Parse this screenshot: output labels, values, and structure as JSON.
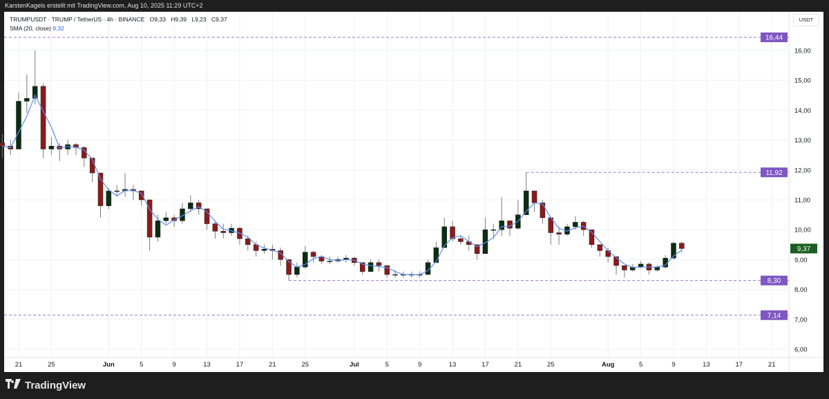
{
  "header": {
    "attribution": "KarstenKagels erstellt mit TradingView.com, Aug 10, 2025 11:29 UTC+2"
  },
  "legend": {
    "symbol": "TRUMPUSDT · TRUMP / TetherUS · 4h · BINANCE",
    "open": "O9,33",
    "high": "H9,39",
    "low": "L9,23",
    "close": "C9,37",
    "sma_label": "SMA (20, close)",
    "sma_value": "9,32"
  },
  "price_axis": {
    "currency": "USDT"
  },
  "branding": {
    "name": "TradingView",
    "logo": "TV"
  },
  "colors": {
    "up": "#0b2d12",
    "down": "#8b1a1a",
    "wick": "#7a7a7a",
    "sma": "#5b8def",
    "level": "#7e57c2",
    "last_price": "#1b5e20"
  },
  "chart_data": {
    "type": "candlestick",
    "ylim": [
      5.7,
      16.9
    ],
    "y_ticks": [
      "6,00",
      "7,00",
      "8,00",
      "9,00",
      "10,00",
      "11,00",
      "12,00",
      "13,00",
      "14,00",
      "15,00",
      "16,00"
    ],
    "y_tick_values": [
      6,
      7,
      8,
      9,
      10,
      11,
      12,
      13,
      14,
      15,
      16
    ],
    "x_ticks": [
      {
        "date": "2025-05-21",
        "label": "21"
      },
      {
        "date": "2025-05-25",
        "label": "25"
      },
      {
        "date": "2025-06-01",
        "label": "Jun"
      },
      {
        "date": "2025-06-05",
        "label": "5"
      },
      {
        "date": "2025-06-09",
        "label": "9"
      },
      {
        "date": "2025-06-13",
        "label": "13"
      },
      {
        "date": "2025-06-17",
        "label": "17"
      },
      {
        "date": "2025-06-21",
        "label": "21"
      },
      {
        "date": "2025-06-25",
        "label": "25"
      },
      {
        "date": "2025-07-01",
        "label": "Jul"
      },
      {
        "date": "2025-07-05",
        "label": "5"
      },
      {
        "date": "2025-07-09",
        "label": "9"
      },
      {
        "date": "2025-07-13",
        "label": "13"
      },
      {
        "date": "2025-07-17",
        "label": "17"
      },
      {
        "date": "2025-07-21",
        "label": "21"
      },
      {
        "date": "2025-07-25",
        "label": "25"
      },
      {
        "date": "2025-08-01",
        "label": "Aug"
      },
      {
        "date": "2025-08-05",
        "label": "5"
      },
      {
        "date": "2025-08-09",
        "label": "9"
      },
      {
        "date": "2025-08-13",
        "label": "13"
      },
      {
        "date": "2025-08-17",
        "label": "17"
      },
      {
        "date": "2025-08-21",
        "label": "21"
      }
    ],
    "first_open": 12.9,
    "dates": [
      "2025-05-19",
      "2025-05-20",
      "2025-05-21",
      "2025-05-22",
      "2025-05-23",
      "2025-05-24",
      "2025-05-25",
      "2025-05-26",
      "2025-05-27",
      "2025-05-28",
      "2025-05-29",
      "2025-05-30",
      "2025-05-31",
      "2025-06-01",
      "2025-06-02",
      "2025-06-03",
      "2025-06-04",
      "2025-06-05",
      "2025-06-06",
      "2025-06-07",
      "2025-06-08",
      "2025-06-09",
      "2025-06-10",
      "2025-06-11",
      "2025-06-12",
      "2025-06-13",
      "2025-06-14",
      "2025-06-15",
      "2025-06-16",
      "2025-06-17",
      "2025-06-18",
      "2025-06-19",
      "2025-06-20",
      "2025-06-21",
      "2025-06-22",
      "2025-06-23",
      "2025-06-24",
      "2025-06-25",
      "2025-06-26",
      "2025-06-27",
      "2025-06-28",
      "2025-06-29",
      "2025-06-30",
      "2025-07-01",
      "2025-07-02",
      "2025-07-03",
      "2025-07-04",
      "2025-07-05",
      "2025-07-06",
      "2025-07-07",
      "2025-07-08",
      "2025-07-09",
      "2025-07-10",
      "2025-07-11",
      "2025-07-12",
      "2025-07-13",
      "2025-07-14",
      "2025-07-15",
      "2025-07-16",
      "2025-07-17",
      "2025-07-18",
      "2025-07-19",
      "2025-07-20",
      "2025-07-21",
      "2025-07-22",
      "2025-07-23",
      "2025-07-24",
      "2025-07-25",
      "2025-07-26",
      "2025-07-27",
      "2025-07-28",
      "2025-07-29",
      "2025-07-30",
      "2025-07-31",
      "2025-08-01",
      "2025-08-02",
      "2025-08-03",
      "2025-08-04",
      "2025-08-05",
      "2025-08-06",
      "2025-08-07",
      "2025-08-08",
      "2025-08-09",
      "2025-08-10"
    ],
    "close": [
      12.8,
      12.7,
      14.3,
      14.4,
      14.8,
      12.7,
      12.8,
      12.7,
      12.85,
      12.75,
      12.4,
      11.9,
      10.8,
      11.3,
      11.3,
      11.35,
      11.3,
      11.0,
      9.75,
      10.3,
      10.4,
      10.3,
      10.7,
      10.9,
      10.7,
      10.2,
      9.95,
      9.9,
      10.05,
      9.7,
      9.5,
      9.3,
      9.35,
      9.3,
      9.0,
      8.5,
      8.75,
      9.25,
      9.1,
      8.95,
      8.95,
      9.0,
      9.05,
      8.9,
      8.6,
      8.9,
      8.8,
      8.5,
      8.5,
      8.5,
      8.5,
      8.5,
      8.9,
      9.4,
      10.1,
      9.7,
      9.6,
      9.5,
      9.2,
      10.0,
      10.0,
      10.3,
      10.05,
      10.5,
      11.3,
      10.9,
      10.4,
      9.9,
      9.85,
      10.1,
      10.25,
      10.0,
      9.5,
      9.3,
      9.1,
      8.8,
      8.65,
      8.75,
      8.85,
      8.65,
      8.75,
      9.05,
      9.55,
      9.37
    ],
    "high": [
      13.2,
      13.0,
      14.6,
      15.2,
      16.0,
      14.9,
      13.1,
      12.9,
      13.0,
      12.9,
      12.8,
      12.4,
      11.9,
      11.4,
      11.5,
      11.9,
      11.5,
      11.3,
      11.0,
      10.5,
      10.6,
      10.5,
      10.9,
      11.15,
      11.0,
      10.7,
      10.3,
      10.2,
      10.2,
      10.1,
      9.8,
      9.6,
      9.5,
      9.5,
      9.4,
      9.0,
      8.9,
      9.45,
      9.3,
      9.15,
      9.1,
      9.1,
      9.15,
      9.1,
      8.9,
      9.0,
      9.0,
      8.8,
      8.65,
      8.6,
      8.6,
      8.6,
      9.0,
      9.6,
      10.4,
      10.3,
      9.8,
      9.8,
      9.5,
      10.4,
      10.2,
      11.1,
      10.3,
      11.0,
      11.92,
      11.3,
      11.0,
      10.4,
      10.1,
      10.2,
      10.45,
      10.3,
      10.0,
      9.5,
      9.4,
      9.1,
      8.8,
      8.85,
      8.95,
      8.9,
      8.8,
      9.15,
      9.6,
      9.6
    ],
    "low": [
      12.4,
      12.5,
      12.7,
      13.9,
      14.2,
      12.4,
      12.5,
      12.3,
      12.5,
      12.5,
      12.1,
      11.6,
      10.4,
      10.7,
      11.1,
      11.1,
      11.0,
      10.8,
      9.3,
      9.6,
      10.2,
      10.1,
      10.2,
      10.6,
      10.5,
      10.0,
      9.7,
      9.7,
      9.8,
      9.5,
      9.3,
      9.1,
      9.2,
      9.0,
      8.8,
      8.3,
      8.4,
      8.7,
      8.9,
      8.85,
      8.85,
      8.9,
      8.9,
      8.8,
      8.5,
      8.6,
      8.6,
      8.4,
      8.4,
      8.4,
      8.4,
      8.4,
      8.5,
      8.9,
      9.4,
      9.6,
      9.5,
      9.3,
      9.0,
      9.2,
      9.7,
      9.8,
      9.8,
      10.0,
      10.5,
      10.6,
      10.2,
      9.5,
      9.5,
      9.8,
      10.0,
      9.8,
      9.4,
      9.1,
      8.9,
      8.5,
      8.4,
      8.6,
      8.7,
      8.5,
      8.6,
      8.7,
      9.0,
      9.23
    ],
    "levels": [
      {
        "value": 16.44,
        "label": "16,44",
        "from_date": "2025-05-19"
      },
      {
        "value": 11.92,
        "label": "11,92",
        "from_date": "2025-07-22"
      },
      {
        "value": 8.3,
        "label": "8,30",
        "from_date": "2025-06-23"
      },
      {
        "value": 7.14,
        "label": "7,14",
        "from_date": "2025-05-19"
      }
    ],
    "last_price": {
      "value": 9.37,
      "label": "9,37"
    },
    "indicator": {
      "name": "SMA (20, close)",
      "last": 9.32
    },
    "grid": true
  }
}
